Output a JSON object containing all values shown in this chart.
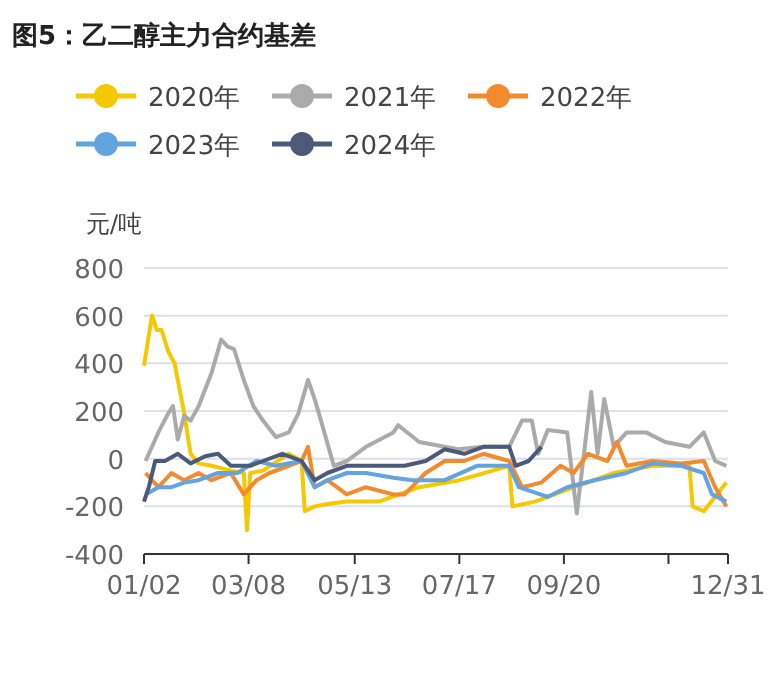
{
  "chart_data": {
    "type": "line",
    "title": "图5：乙二醇主力合约基差",
    "ylabel": "元/吨",
    "xlim": [
      "--01-02",
      "--12-31"
    ],
    "xticks": [
      {
        "value": "--01-02",
        "label": "01/02"
      },
      {
        "value": "--03-08",
        "label": "03/08"
      },
      {
        "value": "--05-13",
        "label": "05/13"
      },
      {
        "value": "--07-17",
        "label": "07/17"
      },
      {
        "value": "--09-20",
        "label": "09/20"
      },
      {
        "value": "--11-24",
        "label": null
      },
      {
        "value": "--12-31",
        "label": "12/31"
      }
    ],
    "ylim": [
      -400,
      800
    ],
    "yticks": [
      -400,
      -200,
      0,
      200,
      400,
      600,
      800
    ],
    "grid": "y",
    "legend": "top",
    "line_style": "solid",
    "series": [
      {
        "name": "2020年",
        "color": "#f5c800",
        "x": [
          "--01-02",
          "--01-07",
          "--01-10",
          "--01-13",
          "--01-17",
          "--01-21",
          "--01-23",
          "--01-27",
          "--01-31",
          "--02-05",
          "--02-13",
          "--02-25",
          "--03-05",
          "--03-07",
          "--03-09",
          "--03-17",
          "--04-02",
          "--04-10",
          "--04-12",
          "--04-18",
          "--04-26",
          "--05-08",
          "--05-28",
          "--06-22",
          "--07-17",
          "--08-17",
          "--08-19",
          "--09-02",
          "--09-22",
          "--10-09",
          "--10-21",
          "--11-14",
          "--12-07",
          "--12-09",
          "--12-16",
          "--12-23",
          "--12-30"
        ],
        "values": [
          390,
          600,
          540,
          540,
          450,
          400,
          330,
          190,
          20,
          -20,
          -30,
          -50,
          -60,
          -300,
          -60,
          -50,
          20,
          -10,
          -220,
          -200,
          -190,
          -180,
          -180,
          -120,
          -90,
          -30,
          -200,
          -180,
          -130,
          -90,
          -60,
          -30,
          -30,
          -200,
          -220,
          -160,
          -100
        ]
      },
      {
        "name": "2021年",
        "color": "#aaaaaa",
        "x": [
          "--01-03",
          "--01-11",
          "--01-17",
          "--01-20",
          "--01-23",
          "--01-27",
          "--01-31",
          "--02-05",
          "--02-13",
          "--02-19",
          "--02-23",
          "--02-27",
          "--03-05",
          "--03-11",
          "--03-17",
          "--03-25",
          "--04-02",
          "--04-08",
          "--04-14",
          "--04-18",
          "--04-22",
          "--04-30",
          "--05-08",
          "--05-20",
          "--06-06",
          "--06-09",
          "--06-22",
          "--07-16",
          "--08-01",
          "--08-17",
          "--08-25",
          "--08-31",
          "--09-04",
          "--09-10",
          "--09-22",
          "--09-28",
          "--10-03",
          "--10-07",
          "--10-11",
          "--10-15",
          "--10-21",
          "--10-29",
          "--11-10",
          "--11-22",
          "--12-07",
          "--12-16",
          "--12-23",
          "--12-30"
        ],
        "values": [
          -10,
          110,
          190,
          220,
          80,
          180,
          160,
          220,
          360,
          500,
          470,
          460,
          330,
          220,
          160,
          90,
          110,
          190,
          330,
          250,
          160,
          -30,
          -10,
          50,
          110,
          140,
          70,
          40,
          50,
          50,
          160,
          160,
          20,
          120,
          110,
          -230,
          50,
          280,
          20,
          250,
          50,
          110,
          110,
          70,
          50,
          110,
          -10,
          -30
        ]
      },
      {
        "name": "2022年",
        "color": "#f28a2e",
        "x": [
          "--01-03",
          "--01-11",
          "--01-19",
          "--01-27",
          "--02-05",
          "--02-13",
          "--02-25",
          "--03-05",
          "--03-13",
          "--03-21",
          "--04-02",
          "--04-10",
          "--04-14",
          "--04-18",
          "--04-26",
          "--05-08",
          "--05-20",
          "--06-06",
          "--06-13",
          "--06-26",
          "--07-08",
          "--07-20",
          "--08-01",
          "--08-17",
          "--08-25",
          "--09-06",
          "--09-18",
          "--09-26",
          "--10-05",
          "--10-17",
          "--10-23",
          "--10-29",
          "--11-14",
          "--12-02",
          "--12-16",
          "--12-23",
          "--12-30"
        ],
        "values": [
          -60,
          -120,
          -60,
          -90,
          -60,
          -90,
          -60,
          -150,
          -90,
          -60,
          -30,
          -10,
          50,
          -120,
          -90,
          -150,
          -120,
          -150,
          -150,
          -60,
          -10,
          -10,
          20,
          -10,
          -120,
          -100,
          -30,
          -60,
          20,
          -10,
          70,
          -30,
          -10,
          -20,
          -10,
          -120,
          -200
        ]
      },
      {
        "name": "2023年",
        "color": "#62a3e0",
        "x": [
          "--01-03",
          "--01-11",
          "--01-19",
          "--01-27",
          "--02-05",
          "--02-17",
          "--03-01",
          "--03-13",
          "--03-25",
          "--04-10",
          "--04-18",
          "--04-26",
          "--05-08",
          "--05-20",
          "--06-06",
          "--06-18",
          "--07-08",
          "--07-28",
          "--08-17",
          "--08-23",
          "--09-10",
          "--09-22",
          "--10-09",
          "--10-29",
          "--11-14",
          "--12-02",
          "--12-16",
          "--12-21",
          "--12-30"
        ],
        "values": [
          -150,
          -120,
          -120,
          -100,
          -90,
          -60,
          -60,
          -10,
          -30,
          -10,
          -120,
          -90,
          -60,
          -60,
          -80,
          -90,
          -90,
          -30,
          -30,
          -120,
          -160,
          -120,
          -90,
          -60,
          -20,
          -30,
          -60,
          -150,
          -180
        ]
      },
      {
        "name": "2024年",
        "color": "#4a5a78",
        "x": [
          "--01-02",
          "--01-05",
          "--01-09",
          "--01-15",
          "--01-23",
          "--01-31",
          "--02-09",
          "--02-17",
          "--02-25",
          "--03-09",
          "--03-17",
          "--03-29",
          "--04-10",
          "--04-18",
          "--04-26",
          "--05-08",
          "--05-20",
          "--06-06",
          "--06-13",
          "--06-26",
          "--07-08",
          "--07-20",
          "--08-01",
          "--08-17",
          "--08-21",
          "--08-29",
          "--09-06"
        ],
        "values": [
          -180,
          -120,
          -10,
          -10,
          20,
          -20,
          10,
          20,
          -30,
          -30,
          -10,
          20,
          -10,
          -90,
          -60,
          -30,
          -30,
          -30,
          -30,
          -10,
          40,
          20,
          50,
          50,
          -30,
          -10,
          50
        ]
      }
    ]
  }
}
